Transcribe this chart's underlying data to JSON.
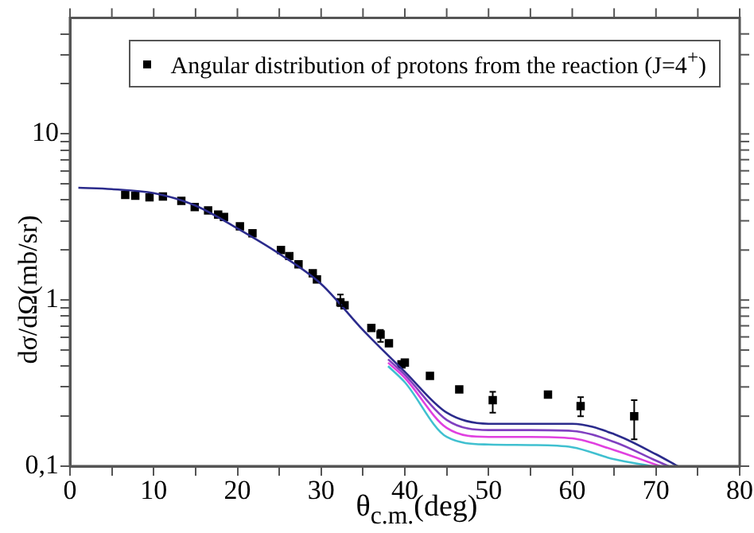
{
  "chart_data": {
    "type": "line",
    "xlabel": "θ$_{c.m.}$(deg)",
    "ylabel": "dσ/dΩ(mb/sr)",
    "log": "y",
    "grid": false,
    "legend": "top right",
    "xlim": [
      0,
      80
    ],
    "ylim": [
      0.1,
      50
    ],
    "xticks": [
      0,
      {
        "value": 5,
        "label": null
      },
      10,
      {
        "value": 15,
        "label": null
      },
      20,
      {
        "value": 25,
        "label": null
      },
      30,
      {
        "value": 35,
        "label": null
      },
      40,
      {
        "value": 45,
        "label": null
      },
      50,
      {
        "value": 55,
        "label": null
      },
      60,
      {
        "value": 65,
        "label": null
      },
      70,
      {
        "value": 75,
        "label": null
      },
      80
    ],
    "yticks": [
      {
        "value": 0.1,
        "label": "0,1"
      },
      {
        "value": 0.2,
        "label": null
      },
      {
        "value": 0.3,
        "label": null
      },
      {
        "value": 0.4,
        "label": null
      },
      {
        "value": 0.5,
        "label": null
      },
      {
        "value": 0.6,
        "label": null
      },
      {
        "value": 0.7,
        "label": null
      },
      {
        "value": 0.8,
        "label": null
      },
      {
        "value": 0.9,
        "label": null
      },
      1,
      {
        "value": 2,
        "label": null
      },
      {
        "value": 3,
        "label": null
      },
      {
        "value": 4,
        "label": null
      },
      {
        "value": 5,
        "label": null
      },
      {
        "value": 6,
        "label": null
      },
      {
        "value": 7,
        "label": null
      },
      {
        "value": 8,
        "label": null
      },
      {
        "value": 9,
        "label": null
      },
      10,
      {
        "value": 20,
        "label": null
      },
      {
        "value": 30,
        "label": null
      },
      {
        "value": 40,
        "label": null
      }
    ],
    "series": [
      {
        "color": "#2b2b8c",
        "marker": "none",
        "line_style": "solid",
        "x": [
          1,
          5,
          10,
          15,
          20,
          25,
          30,
          35,
          40,
          45,
          50,
          55,
          60,
          65,
          70,
          72.6
        ],
        "values": [
          4.74,
          4.65,
          4.4,
          3.7,
          2.7,
          1.9,
          1.25,
          0.66,
          0.37,
          0.21,
          0.18,
          0.18,
          0.18,
          0.156,
          0.118,
          0.1
        ]
      },
      {
        "color": "#8040c0",
        "marker": "none",
        "line_style": "solid",
        "x": [
          38,
          40,
          45,
          50,
          55,
          60,
          65,
          70,
          71.5
        ],
        "values": [
          0.44,
          0.355,
          0.19,
          0.165,
          0.165,
          0.163,
          0.14,
          0.108,
          0.1
        ]
      },
      {
        "color": "#e040e0",
        "marker": "none",
        "line_style": "solid",
        "x": [
          38,
          40,
          45,
          50,
          55,
          60,
          65,
          70.5
        ],
        "values": [
          0.42,
          0.34,
          0.17,
          0.15,
          0.15,
          0.147,
          0.125,
          0.1
        ]
      },
      {
        "color": "#40c0d0",
        "marker": "none",
        "line_style": "solid",
        "x": [
          38,
          40,
          45,
          50,
          55,
          60,
          65,
          69.5
        ],
        "values": [
          0.4,
          0.32,
          0.15,
          0.135,
          0.134,
          0.13,
          0.11,
          0.1
        ]
      },
      {
        "type": "scatter",
        "name": "Angular distribution of protons from the reaction (J=4$^{+}$)",
        "color": "#000000",
        "marker": "square",
        "x": [
          6.6,
          7.8,
          9.5,
          11.1,
          13.3,
          14.9,
          16.5,
          17.7,
          18.4,
          20.3,
          21.8,
          25.2,
          26.2,
          27.3,
          29.0,
          29.5,
          32.3,
          32.8,
          36.0,
          37.1,
          38.1,
          39.6,
          40.0,
          43.0,
          46.5,
          50.5,
          57.1,
          61.0,
          67.4
        ],
        "values": [
          4.3,
          4.25,
          4.15,
          4.2,
          3.95,
          3.63,
          3.46,
          3.27,
          3.16,
          2.78,
          2.52,
          2.0,
          1.84,
          1.64,
          1.45,
          1.33,
          0.97,
          0.93,
          0.68,
          0.62,
          0.55,
          0.41,
          0.42,
          0.35,
          0.29,
          0.25,
          0.27,
          0.23,
          0.2
        ],
        "errors": [
          null,
          null,
          null,
          null,
          null,
          null,
          null,
          null,
          null,
          null,
          null,
          null,
          null,
          null,
          null,
          null,
          [
            0.92,
            1.08
          ],
          null,
          null,
          [
            0.56,
            0.66
          ],
          null,
          null,
          null,
          null,
          null,
          [
            0.21,
            0.28
          ],
          null,
          [
            0.2,
            0.26
          ],
          [
            0.145,
            0.25
          ]
        ]
      }
    ]
  }
}
